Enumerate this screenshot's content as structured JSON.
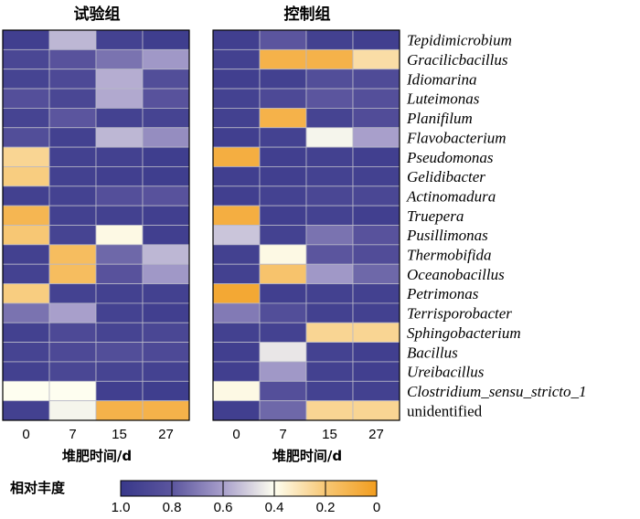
{
  "chart_data": {
    "type": "heatmap",
    "panels": [
      {
        "title": "试验组",
        "xlabel": "堆肥时间/d",
        "x": [
          "0",
          "7",
          "15",
          "27"
        ],
        "values": [
          [
            0.95,
            0.55,
            0.93,
            0.96
          ],
          [
            0.9,
            0.82,
            0.72,
            0.62
          ],
          [
            0.92,
            0.88,
            0.57,
            0.85
          ],
          [
            0.84,
            0.9,
            0.58,
            0.82
          ],
          [
            0.92,
            0.8,
            0.93,
            0.92
          ],
          [
            0.85,
            0.94,
            0.55,
            0.65
          ],
          [
            0.25,
            0.94,
            0.94,
            0.96
          ],
          [
            0.22,
            0.94,
            0.95,
            0.96
          ],
          [
            0.94,
            0.93,
            0.84,
            0.82
          ],
          [
            0.12,
            0.94,
            0.94,
            0.95
          ],
          [
            0.2,
            0.92,
            0.38,
            0.95
          ],
          [
            0.94,
            0.15,
            0.75,
            0.55
          ],
          [
            0.93,
            0.15,
            0.82,
            0.62
          ],
          [
            0.22,
            0.93,
            0.94,
            0.94
          ],
          [
            0.72,
            0.6,
            0.93,
            0.95
          ],
          [
            0.94,
            0.88,
            0.92,
            0.9
          ],
          [
            0.92,
            0.88,
            0.85,
            0.88
          ],
          [
            0.94,
            0.9,
            0.92,
            0.93
          ],
          [
            0.4,
            0.4,
            0.95,
            0.96
          ],
          [
            0.94,
            0.42,
            0.1,
            0.1
          ]
        ]
      },
      {
        "title": "控制组",
        "xlabel": "堆肥时间/d",
        "x": [
          "0",
          "7",
          "15",
          "27"
        ],
        "values": [
          [
            0.95,
            0.8,
            0.94,
            0.95
          ],
          [
            0.94,
            0.1,
            0.1,
            0.28
          ],
          [
            0.95,
            0.94,
            0.85,
            0.87
          ],
          [
            0.93,
            0.88,
            0.8,
            0.84
          ],
          [
            0.94,
            0.1,
            0.92,
            0.86
          ],
          [
            0.95,
            0.93,
            0.42,
            0.6
          ],
          [
            0.08,
            0.95,
            0.94,
            0.95
          ],
          [
            0.95,
            0.95,
            0.93,
            0.94
          ],
          [
            0.95,
            0.93,
            0.9,
            0.9
          ],
          [
            0.08,
            0.95,
            0.93,
            0.95
          ],
          [
            0.52,
            0.93,
            0.72,
            0.82
          ],
          [
            0.94,
            0.38,
            0.8,
            0.86
          ],
          [
            0.94,
            0.18,
            0.62,
            0.75
          ],
          [
            0.05,
            0.95,
            0.94,
            0.94
          ],
          [
            0.7,
            0.85,
            0.94,
            0.94
          ],
          [
            0.94,
            0.93,
            0.25,
            0.25
          ],
          [
            0.95,
            0.45,
            0.93,
            0.95
          ],
          [
            0.95,
            0.62,
            0.94,
            0.95
          ],
          [
            0.38,
            0.84,
            0.93,
            0.94
          ],
          [
            0.95,
            0.75,
            0.25,
            0.25
          ]
        ]
      }
    ],
    "rows": [
      "Tepidimicrobium",
      "Gracilicbacillus",
      "Idiomarina",
      "Luteimonas",
      "Planifilum",
      "Flavobacterium",
      "Pseudomonas",
      "Gelidibacter",
      "Actinomadura",
      "Truepera",
      "Pusillimonas",
      "Thermobifida",
      "Oceanobacillus",
      "Petrimonas",
      "Terrisporobacter",
      "Sphingobacterium",
      "Bacillus",
      "Ureibacillus",
      "Clostridium_sensu_stricto_1",
      "unidentified"
    ],
    "italic_rows": 19,
    "colorbar": {
      "title": "相对丰度",
      "ticks": [
        "1.0",
        "0.8",
        "0.6",
        "0.4",
        "0.2",
        "0"
      ],
      "tick_values": [
        1.0,
        0.8,
        0.6,
        0.4,
        0.2,
        0.0
      ],
      "range": [
        1.0,
        0.0
      ]
    },
    "colors": {
      "high": "#38388a",
      "mid": "#fefef0",
      "low": "#f29d1f",
      "border": "#b8b8c8"
    }
  }
}
